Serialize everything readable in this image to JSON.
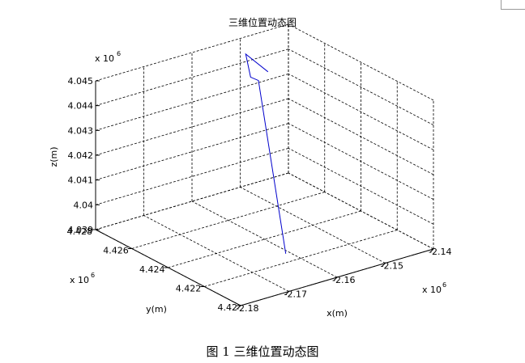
{
  "chart_data": {
    "type": "line3d",
    "title": "三维位置动态图",
    "xlabel": "x(m)",
    "ylabel": "y(m)",
    "zlabel": "z(m)",
    "x_multiplier": "x 10",
    "y_multiplier": "x 10",
    "z_multiplier": "x 10",
    "exponent": "6",
    "xlim": [
      -2.18,
      -2.14
    ],
    "ylim": [
      4.42,
      4.428
    ],
    "zlim": [
      4.039,
      4.045
    ],
    "xticks": [
      -2.18,
      -2.17,
      -2.16,
      -2.15,
      -2.14
    ],
    "yticks": [
      4.42,
      4.422,
      4.424,
      4.426,
      4.428
    ],
    "zticks": [
      4.039,
      4.04,
      4.041,
      4.042,
      4.043,
      4.044,
      4.045
    ],
    "xtick_labels": [
      "-2.18",
      "-2.17",
      "-2.16",
      "-2.15",
      "-2.14"
    ],
    "ytick_labels": [
      "4.42",
      "4.422",
      "4.424",
      "4.426",
      "4.428"
    ],
    "ztick_labels": [
      "4.039",
      "4.04",
      "4.041",
      "4.042",
      "4.043",
      "4.044",
      "4.045"
    ],
    "grid": true,
    "series": [
      {
        "color": "#0000cc",
        "x": [
          -2.1665,
          -2.1545,
          -2.155,
          -2.1545,
          -2.151
        ],
        "y": [
          4.4211,
          4.4258,
          4.4261,
          4.4265,
          4.4262
        ],
        "z": [
          4.0399,
          4.0444,
          4.04445,
          4.0452,
          4.0444
        ]
      }
    ]
  },
  "caption": "图 1  三维位置动态图"
}
